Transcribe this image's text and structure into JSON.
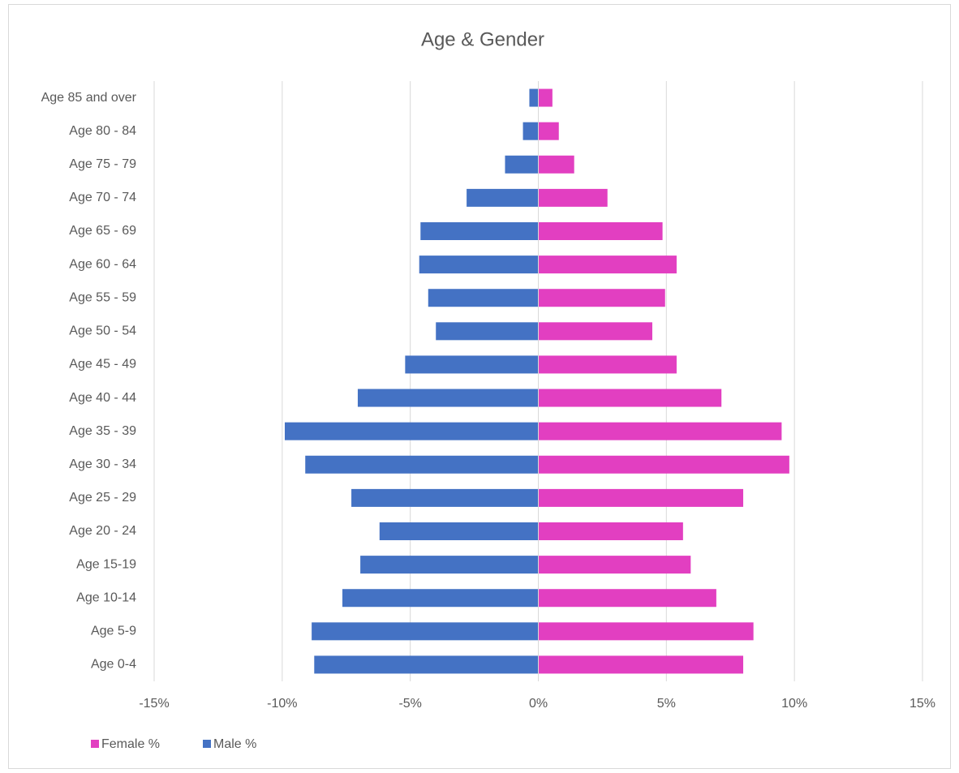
{
  "chart_data": {
    "type": "bar",
    "orientation": "horizontal",
    "stacked": "diverging",
    "title": "Age & Gender",
    "categories": [
      "Age 85 and over",
      "Age 80 - 84",
      "Age 75 - 79",
      "Age 70 - 74",
      "Age 65 - 69",
      "Age 60 - 64",
      "Age 55 - 59",
      "Age 50 - 54",
      "Age 45 - 49",
      "Age 40 - 44",
      "Age 35 - 39",
      "Age 30 - 34",
      "Age 25 - 29",
      "Age 20 - 24",
      "Age 15-19",
      "Age 10-14",
      "Age 5-9",
      "Age 0-4"
    ],
    "series": [
      {
        "name": "Female %",
        "color": "#e23fc1",
        "values": [
          0.55,
          0.8,
          1.4,
          2.7,
          4.85,
          5.4,
          4.95,
          4.45,
          5.4,
          7.15,
          9.5,
          9.8,
          8.0,
          5.65,
          5.95,
          6.95,
          8.4,
          8.0
        ]
      },
      {
        "name": "Male %",
        "color": "#4472c4",
        "values": [
          -0.35,
          -0.6,
          -1.3,
          -2.8,
          -4.6,
          -4.65,
          -4.3,
          -4.0,
          -5.2,
          -7.05,
          -9.9,
          -9.1,
          -7.3,
          -6.2,
          -6.95,
          -7.65,
          -8.85,
          -8.75
        ]
      }
    ],
    "xlim": [
      -15,
      15
    ],
    "xticks": [
      {
        "value": -15,
        "label": "-15%"
      },
      {
        "value": -10,
        "label": "-10%"
      },
      {
        "value": -5,
        "label": "-5%"
      },
      {
        "value": 0,
        "label": "0%"
      },
      {
        "value": 5,
        "label": "5%"
      },
      {
        "value": 10,
        "label": "10%"
      },
      {
        "value": 15,
        "label": "15%"
      }
    ],
    "grid": true,
    "legend": "bottom-left"
  }
}
